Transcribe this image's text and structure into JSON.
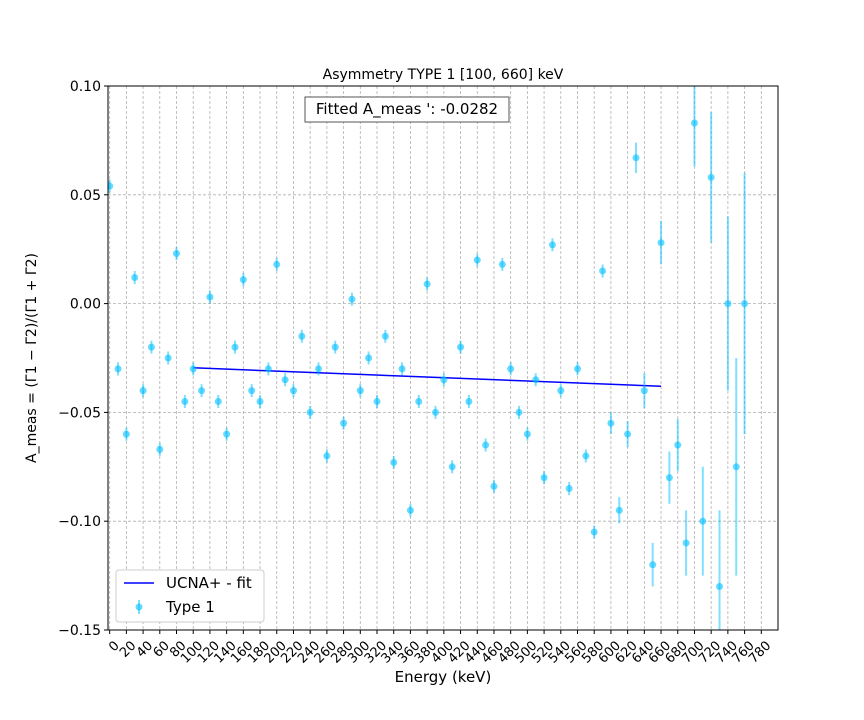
{
  "chart_data": {
    "type": "scatter",
    "title": "Asymmetry TYPE 1 [100, 660] keV",
    "annotation": "Fitted A_meas ': -0.0282",
    "x_label": "Energy (keV)",
    "y_label": "A_meas = (Γ1 − Γ2)/(Γ1 + Γ2)",
    "xlim": [
      -2,
      800
    ],
    "ylim": [
      -0.15,
      0.1
    ],
    "xticks": [
      0,
      20,
      40,
      60,
      80,
      100,
      120,
      140,
      160,
      180,
      200,
      220,
      240,
      260,
      280,
      300,
      320,
      340,
      360,
      380,
      400,
      420,
      440,
      460,
      480,
      500,
      520,
      540,
      560,
      580,
      600,
      620,
      640,
      660,
      680,
      700,
      720,
      740,
      760,
      780
    ],
    "yticks": [
      {
        "value": -0.15,
        "label": "−0.15"
      },
      {
        "value": -0.1,
        "label": "−0.10"
      },
      {
        "value": -0.05,
        "label": "−0.05"
      },
      {
        "value": 0,
        "label": "0.00"
      },
      {
        "value": 0.05,
        "label": "0.05"
      },
      {
        "value": 0.1,
        "label": "0.10"
      }
    ],
    "grid": true,
    "legend": "lower left",
    "series": [
      {
        "name": "UCNA+ - fit",
        "kind": "line",
        "color": "#0000ff",
        "x": [
          100,
          660
        ],
        "values": [
          -0.0295,
          -0.038
        ]
      },
      {
        "name": "Type 1",
        "kind": "errorbar",
        "color": "#00bfff",
        "x": [
          0,
          10,
          20,
          30,
          40,
          50,
          60,
          70,
          80,
          90,
          100,
          110,
          120,
          130,
          140,
          150,
          160,
          170,
          180,
          190,
          200,
          210,
          220,
          230,
          240,
          250,
          260,
          270,
          280,
          290,
          300,
          310,
          320,
          330,
          340,
          350,
          360,
          370,
          380,
          390,
          400,
          410,
          420,
          430,
          440,
          450,
          460,
          470,
          480,
          490,
          500,
          510,
          520,
          530,
          540,
          550,
          560,
          570,
          580,
          590,
          600,
          610,
          620,
          630,
          640,
          650,
          660,
          670,
          680,
          690,
          700,
          710,
          720,
          730,
          740,
          750,
          760
        ],
        "values": [
          0.054,
          -0.03,
          -0.06,
          0.012,
          -0.04,
          -0.02,
          -0.067,
          -0.025,
          0.023,
          -0.045,
          -0.03,
          -0.04,
          0.003,
          -0.045,
          -0.06,
          -0.02,
          0.011,
          -0.04,
          -0.045,
          -0.03,
          0.018,
          -0.035,
          -0.04,
          -0.015,
          -0.05,
          -0.03,
          -0.07,
          -0.02,
          -0.055,
          0.002,
          -0.04,
          -0.025,
          -0.045,
          -0.015,
          -0.073,
          -0.03,
          -0.095,
          -0.045,
          0.009,
          -0.05,
          -0.035,
          -0.075,
          -0.02,
          -0.045,
          0.02,
          -0.065,
          -0.084,
          0.018,
          -0.03,
          -0.05,
          -0.06,
          -0.035,
          -0.08,
          0.027,
          -0.04,
          -0.085,
          -0.03,
          -0.07,
          -0.105,
          0.015,
          -0.055,
          -0.095,
          -0.06,
          0.067,
          -0.04,
          -0.12,
          0.028,
          -0.08,
          -0.065,
          -0.11,
          0.083,
          -0.1,
          0.058,
          -0.13,
          0.0,
          -0.075,
          0.0
        ],
        "errors": [
          0.003,
          0.003,
          0.003,
          0.003,
          0.003,
          0.003,
          0.003,
          0.003,
          0.003,
          0.003,
          0.003,
          0.003,
          0.003,
          0.003,
          0.003,
          0.003,
          0.003,
          0.003,
          0.003,
          0.003,
          0.003,
          0.003,
          0.003,
          0.003,
          0.003,
          0.003,
          0.003,
          0.003,
          0.003,
          0.003,
          0.003,
          0.003,
          0.003,
          0.003,
          0.003,
          0.003,
          0.003,
          0.003,
          0.003,
          0.003,
          0.003,
          0.003,
          0.003,
          0.003,
          0.003,
          0.003,
          0.003,
          0.003,
          0.003,
          0.003,
          0.003,
          0.003,
          0.003,
          0.003,
          0.003,
          0.003,
          0.003,
          0.003,
          0.003,
          0.003,
          0.005,
          0.006,
          0.006,
          0.007,
          0.008,
          0.01,
          0.01,
          0.012,
          0.012,
          0.015,
          0.02,
          0.025,
          0.03,
          0.035,
          0.04,
          0.05,
          0.06
        ]
      }
    ]
  }
}
